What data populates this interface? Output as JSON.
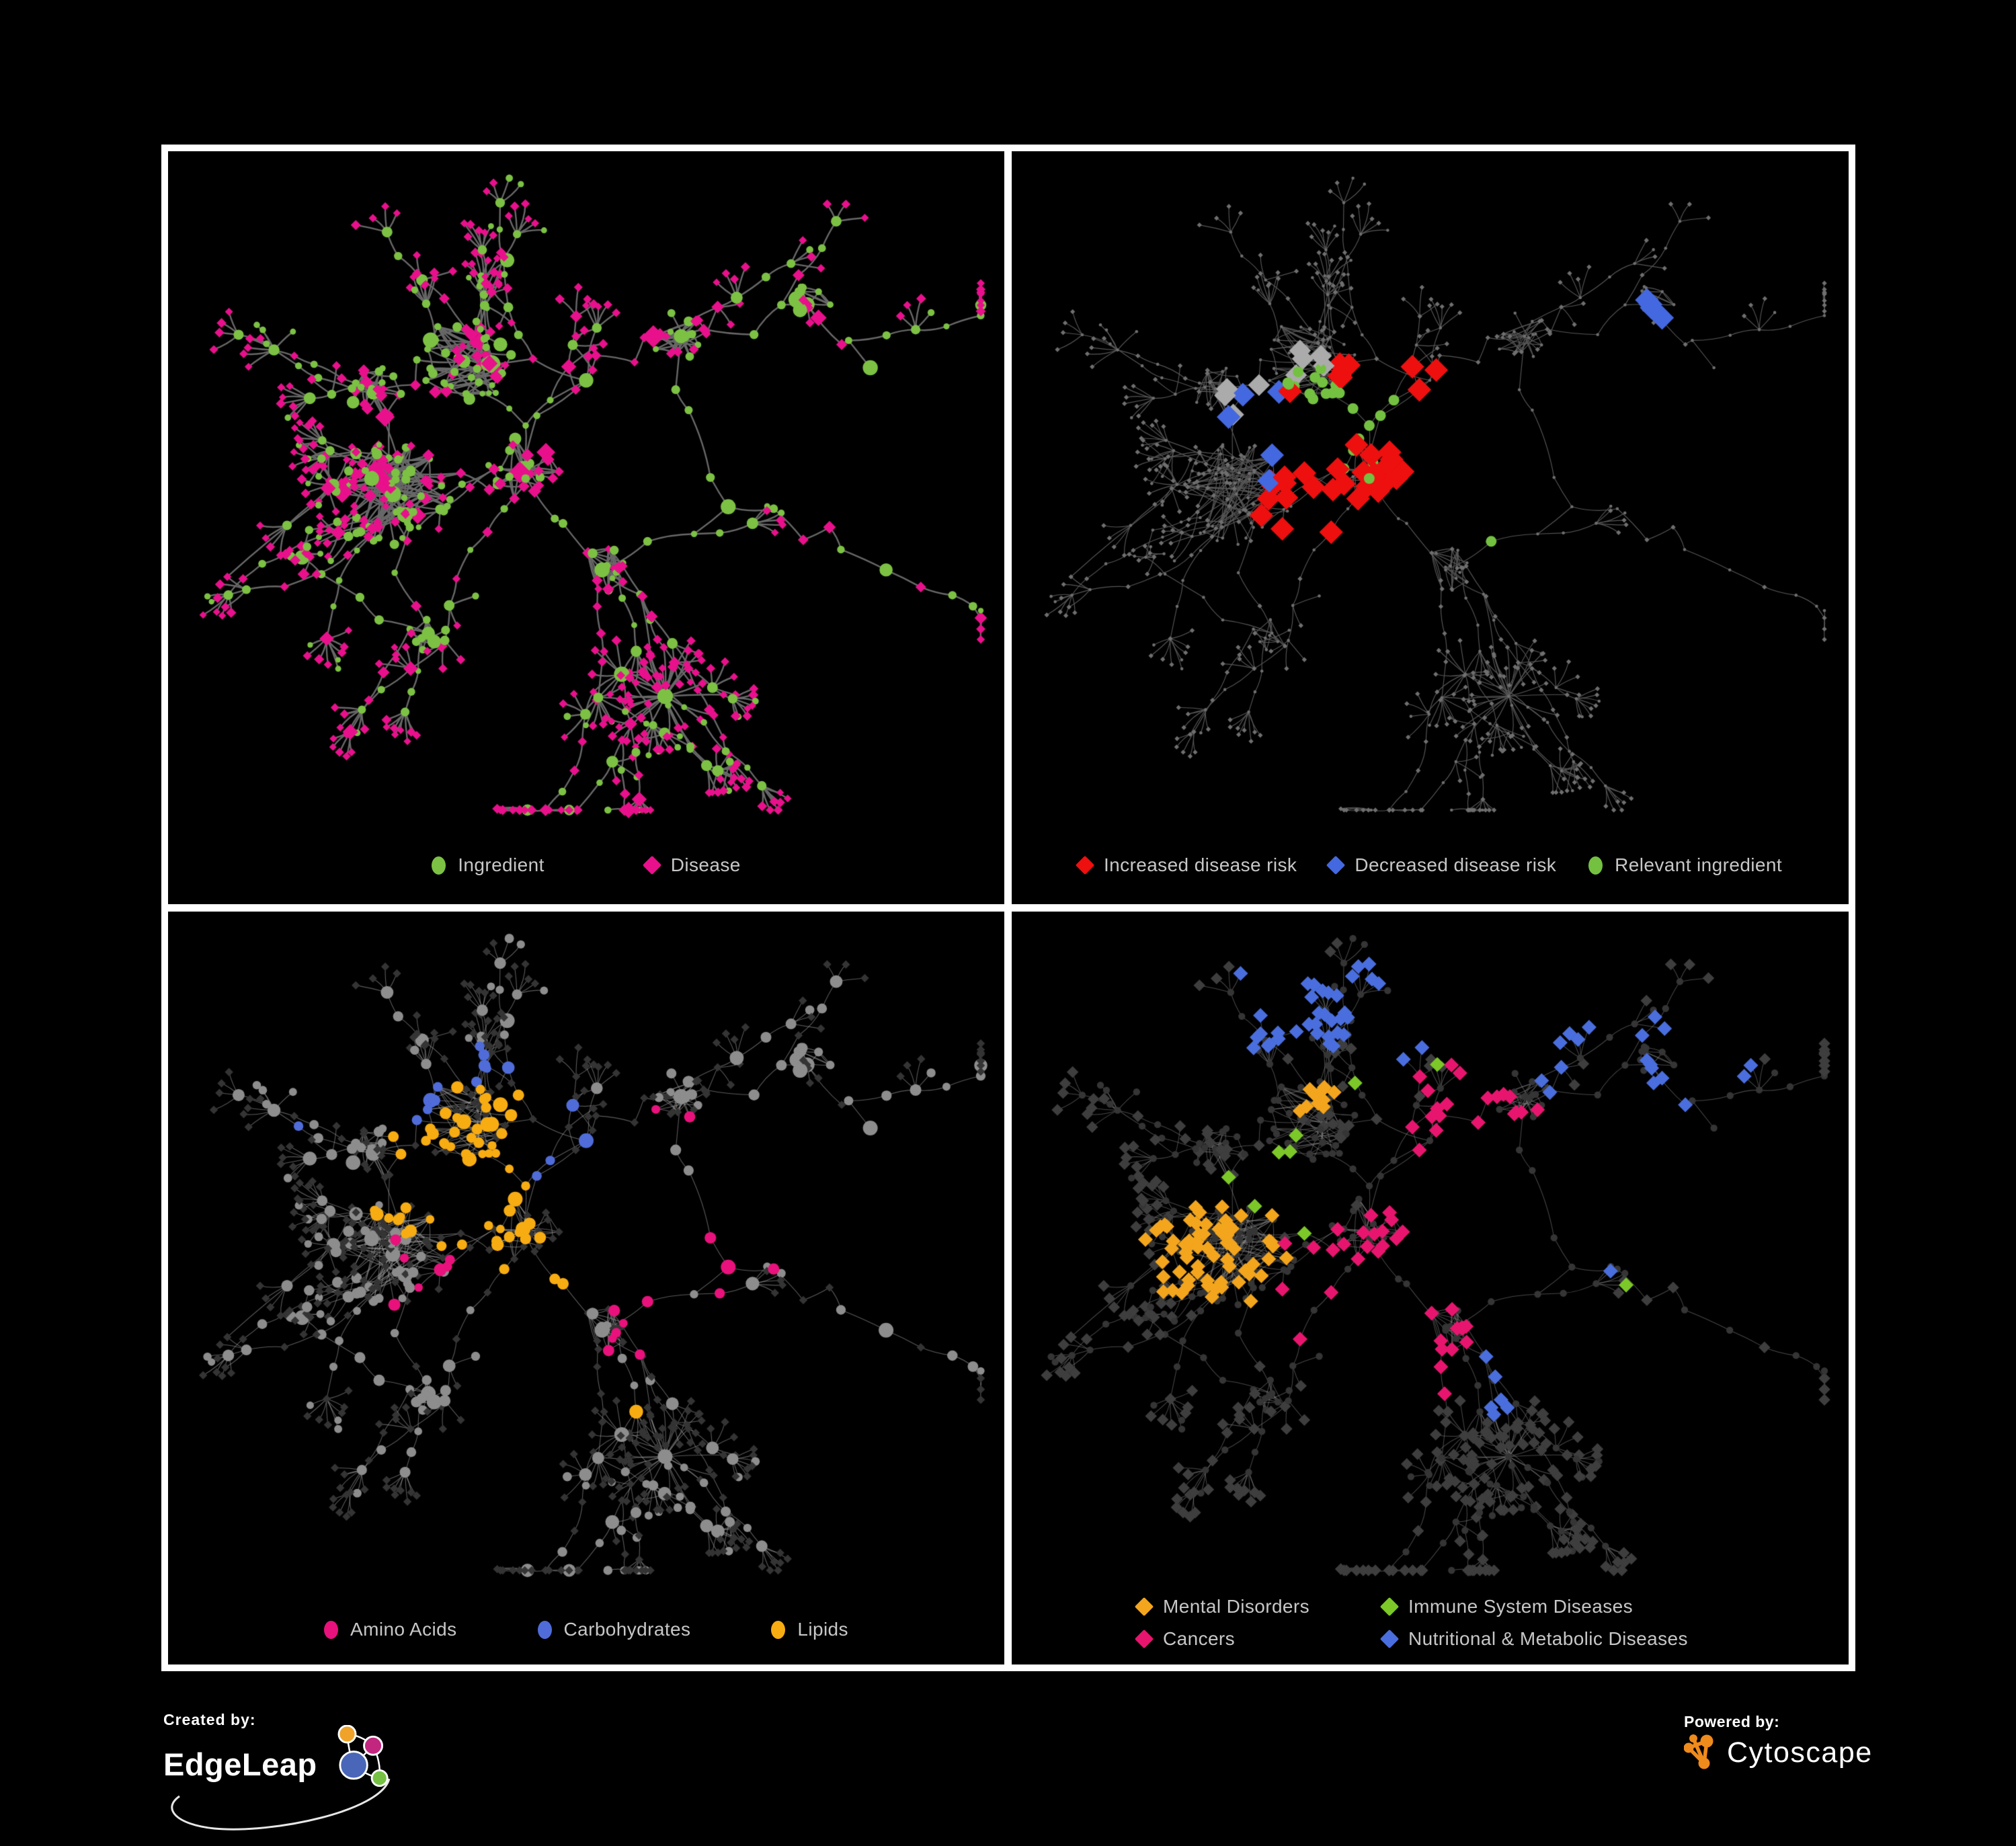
{
  "figure": {
    "background": "#000000",
    "frame_color": "#ffffff"
  },
  "panels": [
    {
      "id": "ingredient-disease",
      "legend": [
        {
          "label": "Ingredient",
          "shape": "circle",
          "color": "#7cc143"
        },
        {
          "label": "Disease",
          "shape": "diamond",
          "color": "#e9108c"
        }
      ],
      "palette": {
        "edge": "#686868",
        "ingredient": "#7cc143",
        "disease": "#e9108c"
      }
    },
    {
      "id": "disease-risk",
      "legend": [
        {
          "label": "Increased disease risk",
          "shape": "diamond",
          "color": "#ee0f0f"
        },
        {
          "label": "Decreased disease risk",
          "shape": "diamond",
          "color": "#4468e0"
        },
        {
          "label": "Relevant ingredient",
          "shape": "circle",
          "color": "#74c141"
        }
      ],
      "palette": {
        "edge": "#575757",
        "base": "#6f6f6f",
        "increased": "#ee0f0f",
        "decreased": "#4468e0",
        "neutral": "#ababab",
        "relevant": "#74c141"
      }
    },
    {
      "id": "macronutrients",
      "legend": [
        {
          "label": "Amino Acids",
          "shape": "circle",
          "color": "#e9117c"
        },
        {
          "label": "Carbohydrates",
          "shape": "circle",
          "color": "#4f6cd9"
        },
        {
          "label": "Lipids",
          "shape": "circle",
          "color": "#f7ac12"
        }
      ],
      "palette": {
        "edge": "rgba(165,165,165,0.55)",
        "ingredient_base": "#8d8d8d",
        "disease_base": "#343434",
        "amino_acids": "#e9117c",
        "carbohydrates": "#4f6cd9",
        "lipids": "#f7ac12"
      }
    },
    {
      "id": "disease-classes",
      "legend": [
        {
          "label": "Mental Disorders",
          "shape": "diamond",
          "color": "#f3a51d"
        },
        {
          "label": "Immune System Diseases",
          "shape": "diamond",
          "color": "#7cc828"
        },
        {
          "label": "Cancers",
          "shape": "diamond",
          "color": "#e8156f"
        },
        {
          "label": "Nutritional & Metabolic Diseases",
          "shape": "diamond",
          "color": "#4a6edd"
        }
      ],
      "palette": {
        "edge": "rgba(160,160,160,0.45)",
        "ingredient_base": "#353535",
        "disease_base": "#3e3e3e",
        "mental": "#f3a51d",
        "immune": "#7cc828",
        "cancers": "#e8156f",
        "nutritional": "#4a6edd"
      }
    }
  ],
  "footer": {
    "created_by_label": "Created by:",
    "created_by_brand": "EdgeLeap",
    "powered_by_label": "Powered by:",
    "powered_by_brand": "Cytoscape"
  }
}
